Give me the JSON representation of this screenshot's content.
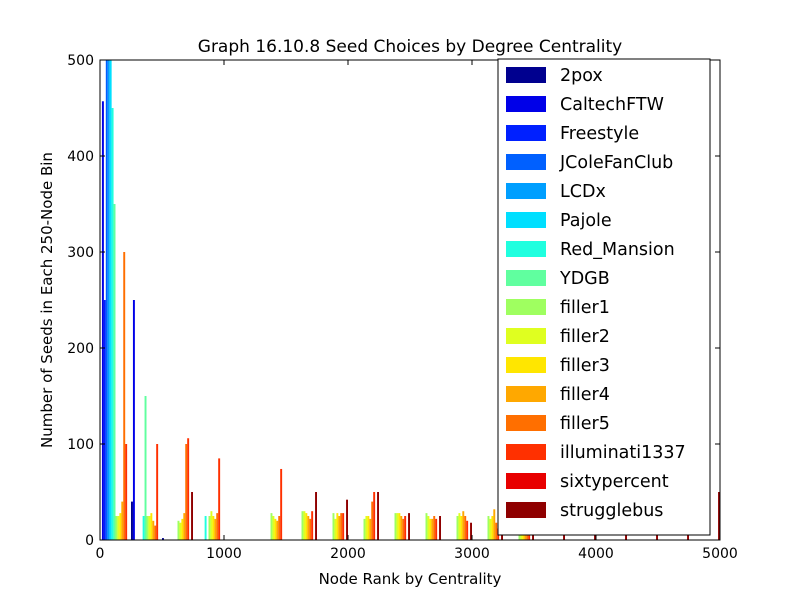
{
  "chart_data": {
    "type": "bar",
    "title": "Graph 16.10.8 Seed Choices by Degree Centrality",
    "xlabel": "Node Rank by Centrality",
    "ylabel": "Number of Seeds in Each 250-Node Bin",
    "xlim": [
      0,
      5000
    ],
    "ylim": [
      0,
      500
    ],
    "xticks": [
      0,
      1000,
      2000,
      3000,
      4000,
      5000
    ],
    "yticks": [
      0,
      100,
      200,
      300,
      400,
      500
    ],
    "grid": false,
    "legend_position": "right",
    "bin_starts": [
      0,
      250,
      500,
      750,
      1000,
      1250,
      1500,
      1750,
      2000,
      2250,
      2500,
      2750,
      3000,
      3250,
      3500,
      3750,
      4000,
      4250,
      4500,
      4750
    ],
    "series": [
      {
        "name": "2pox",
        "color": "#00008f",
        "values": [
          0,
          40,
          2,
          0,
          0,
          0,
          0,
          0,
          0,
          0,
          0,
          0,
          0,
          0,
          0,
          0,
          0,
          0,
          0,
          0
        ]
      },
      {
        "name": "CaltechFTW",
        "color": "#0000e8",
        "values": [
          457,
          250,
          0,
          0,
          0,
          0,
          0,
          0,
          0,
          0,
          0,
          0,
          0,
          0,
          0,
          0,
          0,
          0,
          0,
          0
        ]
      },
      {
        "name": "Freestyle",
        "color": "#0020ff",
        "values": [
          250,
          0,
          0,
          0,
          0,
          0,
          0,
          0,
          0,
          0,
          0,
          0,
          0,
          0,
          0,
          0,
          0,
          0,
          0,
          0
        ]
      },
      {
        "name": "JColeFanClub",
        "color": "#0060ff",
        "values": [
          500,
          0,
          0,
          0,
          0,
          0,
          0,
          0,
          0,
          0,
          0,
          0,
          0,
          0,
          0,
          0,
          0,
          0,
          0,
          0
        ]
      },
      {
        "name": "LCDx",
        "color": "#009fff",
        "values": [
          500,
          0,
          0,
          0,
          0,
          0,
          0,
          0,
          0,
          0,
          0,
          0,
          0,
          0,
          0,
          0,
          0,
          0,
          0,
          0
        ]
      },
      {
        "name": "Pajole",
        "color": "#00dfff",
        "values": [
          500,
          0,
          0,
          0,
          0,
          0,
          0,
          0,
          0,
          0,
          0,
          0,
          0,
          0,
          0,
          0,
          0,
          0,
          0,
          0
        ]
      },
      {
        "name": "Red_Mansion",
        "color": "#20ffdf",
        "values": [
          450,
          25,
          0,
          25,
          0,
          0,
          0,
          0,
          0,
          0,
          0,
          0,
          0,
          0,
          0,
          0,
          0,
          0,
          0,
          0
        ]
      },
      {
        "name": "YDGB",
        "color": "#60ff9f",
        "values": [
          350,
          150,
          0,
          0,
          0,
          0,
          0,
          0,
          0,
          0,
          0,
          0,
          0,
          0,
          0,
          0,
          0,
          0,
          0,
          0
        ]
      },
      {
        "name": "filler1",
        "color": "#9fff60",
        "values": [
          25,
          25,
          20,
          25,
          0,
          28,
          30,
          28,
          22,
          28,
          28,
          25,
          25,
          28,
          0,
          0,
          0,
          0,
          0,
          0
        ]
      },
      {
        "name": "filler2",
        "color": "#dfff20",
        "values": [
          25,
          25,
          18,
          30,
          0,
          25,
          30,
          22,
          25,
          28,
          25,
          28,
          22,
          32,
          0,
          0,
          0,
          0,
          0,
          0
        ]
      },
      {
        "name": "filler3",
        "color": "#ffe600",
        "values": [
          28,
          28,
          22,
          25,
          0,
          22,
          28,
          28,
          25,
          28,
          22,
          25,
          25,
          35,
          0,
          0,
          0,
          0,
          0,
          0
        ]
      },
      {
        "name": "filler4",
        "color": "#ffa800",
        "values": [
          40,
          20,
          28,
          22,
          0,
          20,
          25,
          25,
          22,
          25,
          22,
          30,
          32,
          22,
          0,
          0,
          0,
          0,
          0,
          0
        ]
      },
      {
        "name": "filler5",
        "color": "#ff6f00",
        "values": [
          300,
          15,
          100,
          28,
          0,
          25,
          22,
          28,
          40,
          22,
          25,
          25,
          18,
          15,
          0,
          0,
          0,
          0,
          0,
          0
        ]
      },
      {
        "name": "illuminati1337",
        "color": "#ff3000",
        "values": [
          100,
          100,
          106,
          85,
          0,
          74,
          30,
          28,
          50,
          25,
          22,
          20,
          12,
          20,
          0,
          0,
          0,
          0,
          0,
          0
        ]
      },
      {
        "name": "sixtypercent",
        "color": "#e80000",
        "values": [
          0,
          0,
          0,
          0,
          0,
          0,
          0,
          0,
          0,
          0,
          0,
          0,
          0,
          0,
          0,
          0,
          0,
          0,
          0,
          0
        ]
      },
      {
        "name": "strugglebus",
        "color": "#8f0000",
        "values": [
          0,
          0,
          50,
          0,
          0,
          0,
          50,
          42,
          50,
          28,
          25,
          18,
          8,
          30,
          32,
          30,
          28,
          30,
          28,
          50
        ]
      }
    ]
  }
}
